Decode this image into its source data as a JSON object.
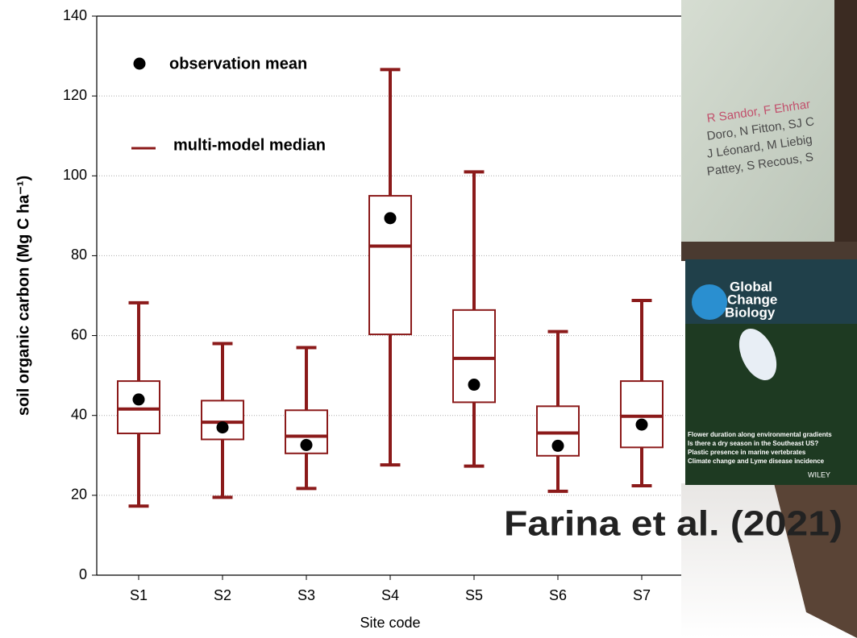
{
  "chart_data": {
    "type": "box",
    "y_label": "soil organic carbon (Mg C ha⁻¹)",
    "x_label": "Site code",
    "categories": [
      "S1",
      "S2",
      "S3",
      "S4",
      "S5",
      "S6",
      "S7"
    ],
    "whisker_low": [
      17.3,
      19.5,
      21.7,
      27.6,
      27.3,
      21,
      22.4
    ],
    "q1": [
      35.5,
      34,
      30.5,
      60.3,
      43.3,
      29.9,
      32
    ],
    "median": [
      41.6,
      38.3,
      34.8,
      82.4,
      54.3,
      35.6,
      39.8
    ],
    "q3": [
      48.6,
      43.7,
      41.3,
      95,
      66.4,
      42.3,
      48.6
    ],
    "whisker_high": [
      68.2,
      58,
      57,
      126.6,
      101,
      61,
      68.8
    ],
    "mean": [
      44,
      37,
      32.6,
      89.4,
      47.7,
      32.4,
      37.7
    ],
    "box_color": "#8b1a1a",
    "mean_color": "#000000",
    "legend": [
      {
        "name": "observation mean"
      },
      {
        "name": "multi-model median"
      }
    ],
    "ylim": [
      0,
      140
    ],
    "yticks": [
      0,
      20,
      40,
      60,
      80,
      100,
      120,
      140
    ],
    "grid": true
  },
  "overlay": {
    "authors": [
      "R Sandor, F Ehrhar",
      "Doro, N Fitton, SJ C",
      "J Léonard, M Liebig",
      "Pattey, S Recous, S"
    ],
    "journal": [
      "Global",
      "Change",
      "Biology"
    ],
    "cover_lines": [
      "Flower duration along environmental gradients",
      "Is there a dry season in the Southeast US?",
      "Plastic presence in marine vertebrates",
      "Climate change and Lyme disease incidence"
    ],
    "publisher": "WILEY",
    "citation": "Farina et al. (2021)"
  }
}
